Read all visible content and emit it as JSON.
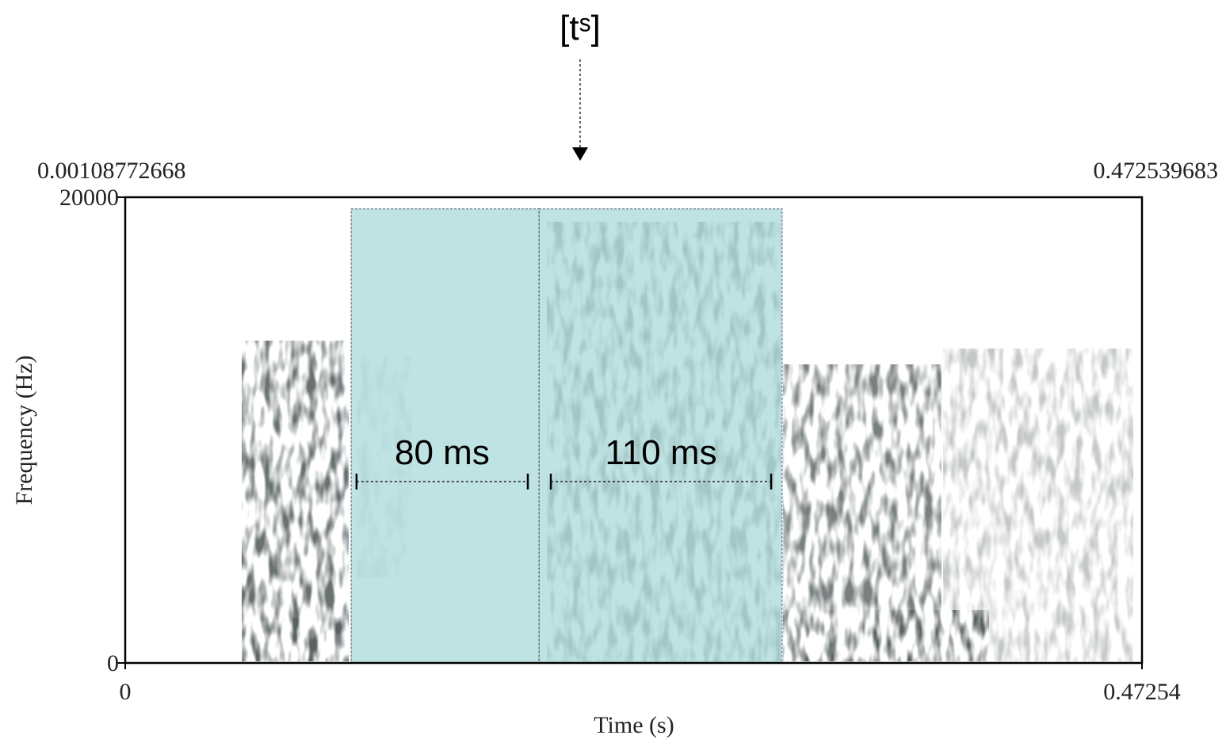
{
  "chart_data": {
    "type": "spectrogram",
    "annotation": "[tˢ]",
    "window_start_label": "0.00108772668",
    "window_end_label": "0.472539683",
    "x_label": "Time (s)",
    "y_label": "Frequency (Hz)",
    "xlim": [
      0,
      0.47254
    ],
    "ylim": [
      0,
      20000
    ],
    "xticks": [
      0,
      0.47254
    ],
    "yticks": [
      0,
      20000
    ],
    "shade_color": "#b2dcdc",
    "segments": [
      {
        "start": 0.105,
        "end": 0.1923,
        "high": 19500,
        "bracket": [
          0.1075,
          0.1871
        ],
        "label": "80 ms"
      },
      {
        "start": 0.1923,
        "end": 0.3053,
        "high": 19500,
        "bracket": [
          0.1978,
          0.3002
        ],
        "label": "110 ms"
      }
    ]
  }
}
